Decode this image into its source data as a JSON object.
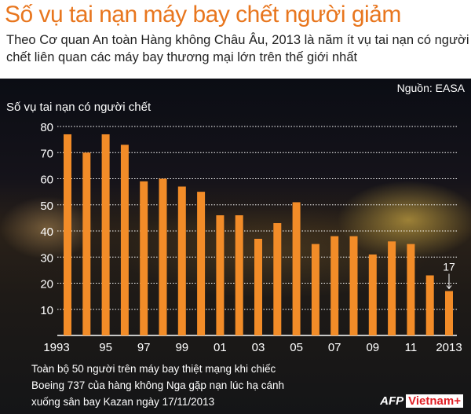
{
  "header": {
    "title": "Số vụ tai nạn máy bay chết người giảm",
    "subtitle": "Theo Cơ quan An toàn Hàng không Châu Âu, 2013 là năm ít vụ tai nạn có người chết liên quan các máy bay thương mại lớn trên thế giới nhất"
  },
  "source": "Nguồn: EASA",
  "caption": "Toàn bộ 50 người trên máy bay thiệt mạng khi chiếc Boeing 737 của hàng không Nga gặp nạn lúc hạ cánh xuống sân bay Kazan ngày 17/11/2013",
  "logo": {
    "afp": "AFP",
    "vn": "Vietnam+"
  },
  "colors": {
    "bar": "#f28c28",
    "title": "#e8761e"
  },
  "chart_data": {
    "type": "bar",
    "ylabel": "Số vụ tai nạn có người chết",
    "ylim": [
      0,
      80
    ],
    "yticks": [
      10,
      20,
      30,
      40,
      50,
      60,
      70,
      80
    ],
    "grid": true,
    "categories": [
      "1993",
      "1994",
      "1995",
      "1996",
      "1997",
      "1998",
      "1999",
      "2000",
      "2001",
      "2002",
      "2003",
      "2004",
      "2005",
      "2006",
      "2007",
      "2008",
      "2009",
      "2010",
      "2011",
      "2012",
      "2013"
    ],
    "xtick_labels": [
      "1993",
      "",
      "95",
      "",
      "97",
      "",
      "99",
      "",
      "01",
      "",
      "03",
      "",
      "05",
      "",
      "07",
      "",
      "09",
      "",
      "11",
      "",
      "2013"
    ],
    "values": [
      77,
      70,
      77,
      73,
      59,
      60,
      57,
      55,
      46,
      46,
      37,
      43,
      51,
      35,
      38,
      38,
      31,
      36,
      35,
      23,
      17
    ],
    "annotations": [
      {
        "category": "2013",
        "text": "17"
      }
    ]
  }
}
